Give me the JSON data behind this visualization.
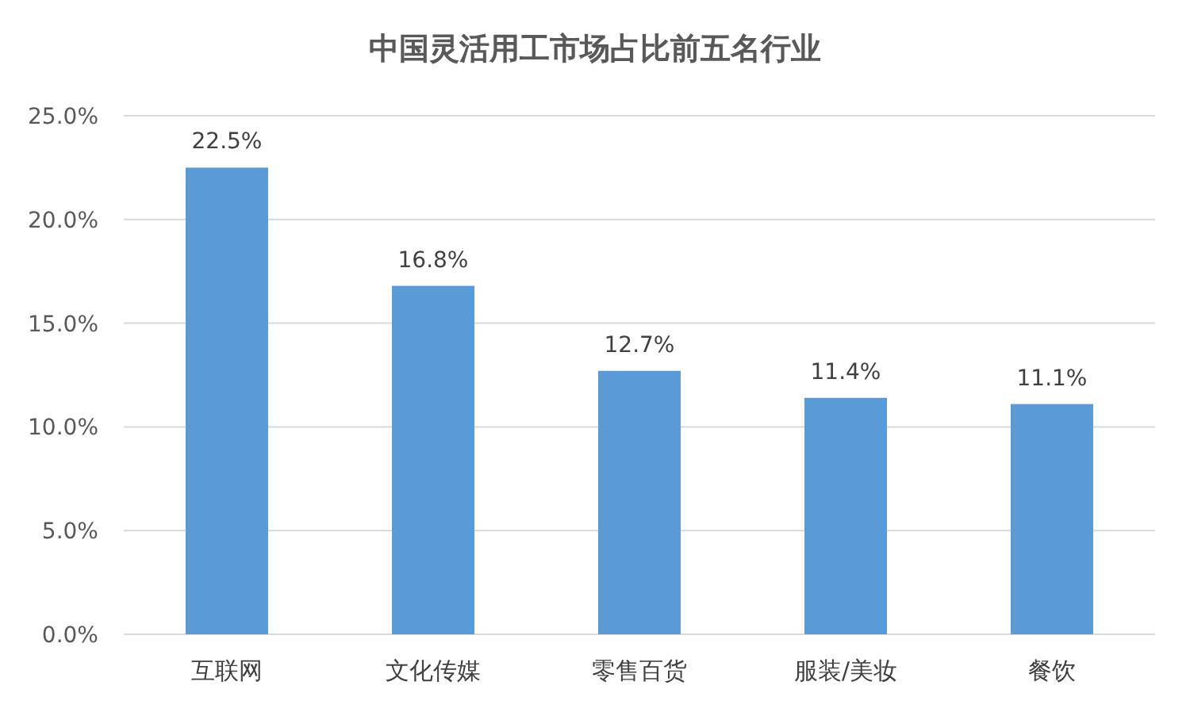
{
  "chart_data": {
    "type": "bar",
    "title": "中国灵活用工市场占比前五名行业",
    "categories": [
      "互联网",
      "文化传媒",
      "零售百货",
      "服装/美妆",
      "餐饮"
    ],
    "values": [
      22.5,
      16.8,
      12.7,
      11.4,
      11.1
    ],
    "value_labels": [
      "22.5%",
      "16.8%",
      "12.7%",
      "11.4%",
      "11.1%"
    ],
    "color": "#5b9bd5",
    "ylim": [
      0,
      25
    ],
    "yticks": [
      {
        "value": 0,
        "label": "0.0%"
      },
      {
        "value": 5,
        "label": "5.0%"
      },
      {
        "value": 10,
        "label": "10.0%"
      },
      {
        "value": 15,
        "label": "15.0%"
      },
      {
        "value": 20,
        "label": "20.0%"
      },
      {
        "value": 25,
        "label": "25.0%"
      }
    ],
    "grid": "y"
  }
}
